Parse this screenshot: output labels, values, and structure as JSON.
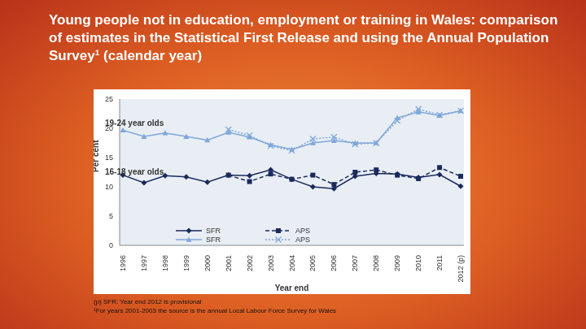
{
  "title": "Young people not in education, employment or training in Wales: comparison of estimates in the Statistical First Release and using the Annual Population Survey¹ (calendar year)",
  "footnotes": [
    "(p) SFR: Year end 2012 is provisional",
    "¹For years 2001-2003 the source is the annual Local Labour Force Survey for Wales"
  ],
  "chart_data": {
    "type": "line",
    "x_label": "Year end",
    "y_label": "Per cent",
    "annotations": [
      "19-24 year olds",
      "16-18 year olds"
    ],
    "categories": [
      "1996",
      "1997",
      "1998",
      "1999",
      "2000",
      "2001",
      "2002",
      "2003",
      "2004",
      "2005",
      "2006",
      "2007",
      "2008",
      "2009",
      "2010",
      "2011",
      "2012 (p)"
    ],
    "ylim": [
      0,
      25
    ],
    "yticks": [
      0,
      5,
      10,
      15,
      20,
      25
    ],
    "grid": false,
    "legend": "bottom",
    "series": [
      {
        "name": "SFR",
        "color": "#1b2a5c",
        "marker": "diamond",
        "line_style": "solid",
        "values": [
          12,
          10.7,
          11.9,
          11.7,
          10.8,
          12,
          11.9,
          12.9,
          11.3,
          10,
          9.7,
          11.8,
          12.3,
          12.2,
          11.6,
          12.1,
          10.1
        ]
      },
      {
        "name": "APS",
        "color": "#1b2a5c",
        "marker": "square",
        "line_style": "dashed",
        "values": [
          null,
          null,
          null,
          null,
          null,
          12,
          10.9,
          12.2,
          11.3,
          12,
          10.4,
          12.5,
          12.9,
          12,
          11.4,
          13.3,
          11.8
        ]
      },
      {
        "name": "SFR",
        "color": "#7fa7d9",
        "marker": "triangle",
        "line_style": "solid",
        "values": [
          19.7,
          18.6,
          19.2,
          18.6,
          18,
          19.3,
          18.5,
          17.2,
          16.4,
          17.5,
          17.9,
          17.5,
          17.5,
          21.8,
          22.8,
          22.2,
          23
        ]
      },
      {
        "name": "APS",
        "color": "#7fa7d9",
        "marker": "x",
        "line_style": "dotted",
        "values": [
          null,
          null,
          null,
          null,
          null,
          19.8,
          18.8,
          17,
          16.2,
          18.2,
          18.5,
          17.3,
          17.5,
          21.3,
          23.3,
          22.3,
          23
        ]
      }
    ]
  }
}
